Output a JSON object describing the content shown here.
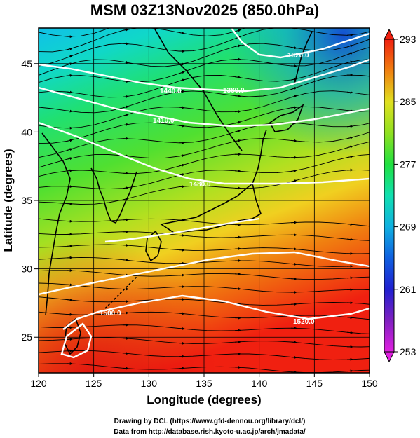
{
  "title": "MSM 03Z13Nov2025 (850.0hPa)",
  "xlabel": "Longitude (degrees)",
  "ylabel": "Latitude  (degrees)",
  "credits": [
    "Drawing by DCL (https://www.gfd-dennou.org/library/dcl/)",
    "Data from http://database.rish.kyoto-u.ac.jp/arch/jmadata/"
  ],
  "chart_data": {
    "type": "heatmap",
    "xlim": [
      120,
      150
    ],
    "ylim": [
      22.4,
      47.6
    ],
    "x_ticks": [
      120,
      125,
      130,
      135,
      140,
      145,
      150
    ],
    "y_ticks": [
      25,
      30,
      35,
      40,
      45
    ],
    "grid": true,
    "colorbar": {
      "min": 253,
      "max": 293,
      "ticks": [
        253,
        261,
        269,
        277,
        285,
        293
      ],
      "colors": [
        "#e020e0",
        "#6020c0",
        "#1030e0",
        "#10a0e0",
        "#10e0c0",
        "#20e040",
        "#a0e020",
        "#f0e020",
        "#f09010",
        "#f03010"
      ]
    },
    "contour_labels": [
      "1320.0",
      "1380.0",
      "1440.0",
      "1410.0",
      "1480.0",
      "1520.0",
      "1500.0"
    ]
  },
  "colors": {
    "contour": "#ffffff",
    "streamline": "#000000",
    "coast": "#000000"
  }
}
